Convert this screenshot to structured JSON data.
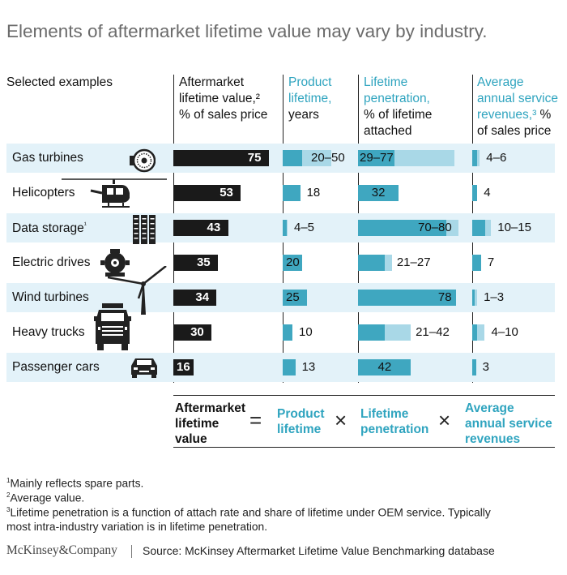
{
  "title": "Elements of aftermarket lifetime value may vary by industry.",
  "headers": {
    "examples": "Selected examples",
    "alv": [
      "Aftermarket",
      "lifetime value,²",
      "% of sales price"
    ],
    "product": [
      "Product",
      "lifetime,",
      "years"
    ],
    "penetration_teal": [
      "Lifetime",
      "penetration,"
    ],
    "penetration_black": [
      "% of lifetime",
      "attached"
    ],
    "revenue_teal": [
      "Average",
      "annual service",
      "revenues,³"
    ],
    "revenue_black_suffix": "%",
    "revenue_black": "of sales price"
  },
  "chart_data": {
    "type": "bar",
    "categories": [
      "Gas turbines",
      "Helicopters",
      "Data storage",
      "Electric drives",
      "Wind turbines",
      "Heavy trucks",
      "Passenger cars"
    ],
    "category_footnotes": [
      "",
      "",
      "¹",
      "",
      "",
      "",
      ""
    ],
    "series": [
      {
        "name": "Aftermarket lifetime value, % of sales price",
        "values": [
          75,
          53,
          43,
          35,
          34,
          30,
          16
        ]
      },
      {
        "name": "Product lifetime, years",
        "labels": [
          "20–50",
          "18",
          "4–5",
          "20",
          "25",
          "10",
          "13"
        ],
        "low": [
          20,
          18,
          4,
          20,
          25,
          10,
          13
        ],
        "high": [
          50,
          18,
          5,
          20,
          25,
          10,
          13
        ]
      },
      {
        "name": "Lifetime penetration, % of lifetime attached",
        "labels": [
          "29–77",
          "32",
          "70–80",
          "21–27",
          "78",
          "21–42",
          "42"
        ],
        "low": [
          29,
          32,
          70,
          21,
          78,
          21,
          42
        ],
        "high": [
          77,
          32,
          80,
          27,
          78,
          42,
          42
        ]
      },
      {
        "name": "Average annual service revenues, % of sales price",
        "labels": [
          "4–6",
          "4",
          "10–15",
          "7",
          "1–3",
          "4–10",
          "3"
        ],
        "low": [
          4,
          4,
          10,
          7,
          1,
          4,
          3
        ],
        "high": [
          6,
          4,
          15,
          7,
          3,
          10,
          3
        ]
      }
    ],
    "colors": {
      "alv": "#1a1a1a",
      "low": "#3fa7c0",
      "range": "#a9d8e7",
      "stripe": "#e3f2f9",
      "teal_text": "#2fa4bf"
    }
  },
  "icons": [
    "turbine-icon",
    "helicopter-icon",
    "server-rack-icon",
    "electric-motor-icon",
    "wind-turbine-icon",
    "truck-icon",
    "car-icon"
  ],
  "formula": {
    "alv": [
      "Aftermarket",
      "lifetime",
      "value"
    ],
    "eq": "=",
    "product": [
      "Product",
      "lifetime"
    ],
    "times": "×",
    "penetration": [
      "Lifetime",
      "penetration"
    ],
    "revenue": [
      "Average",
      "annual service",
      "revenues"
    ]
  },
  "footnotes": [
    {
      "mark": "1",
      "text": "Mainly reflects spare parts."
    },
    {
      "mark": "2",
      "text": "Average value."
    },
    {
      "mark": "3",
      "text": "Lifetime penetration is a function of attach rate and share of lifetime under OEM service. Typically"
    },
    {
      "mark": "",
      "text": "most intra-industry variation is in lifetime penetration."
    }
  ],
  "brand": "McKinsey&Company",
  "source": "Source: McKinsey Aftermarket Lifetime Value Benchmarking database"
}
